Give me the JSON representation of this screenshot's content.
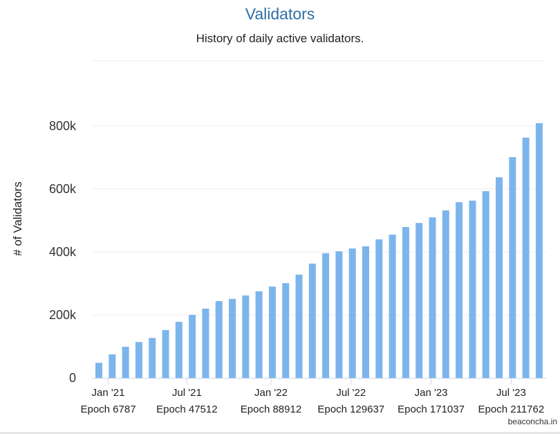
{
  "chart_data": {
    "type": "bar",
    "title": "Validators",
    "subtitle": "History of daily active validators.",
    "xlabel": "",
    "ylabel": "# of Validators",
    "ylim": [
      0,
      850000
    ],
    "yticks": [
      0,
      200000,
      400000,
      600000,
      800000
    ],
    "ytick_labels": [
      "0",
      "200k",
      "400k",
      "600k",
      "800k"
    ],
    "grid": true,
    "color": "#7cb5ec",
    "values": [
      48000,
      75000,
      99000,
      114000,
      127000,
      152000,
      178000,
      200000,
      220000,
      244000,
      251000,
      262000,
      275000,
      290000,
      301000,
      328000,
      363000,
      396000,
      402000,
      411000,
      418000,
      440000,
      455000,
      479000,
      492000,
      510000,
      532000,
      558000,
      563000,
      593000,
      637000,
      701000,
      763000,
      809000
    ],
    "xticks": [
      {
        "at": 0.7,
        "line1": "Jan '21",
        "line2": "Epoch 6787"
      },
      {
        "at": 6.6,
        "line1": "Jul '21",
        "line2": "Epoch 47512"
      },
      {
        "at": 12.9,
        "line1": "Jan '22",
        "line2": "Epoch 88912"
      },
      {
        "at": 18.9,
        "line1": "Jul '22",
        "line2": "Epoch 129637"
      },
      {
        "at": 24.9,
        "line1": "Jan '23",
        "line2": "Epoch 171037"
      },
      {
        "at": 30.9,
        "line1": "Jul '23",
        "line2": "Epoch 211762"
      }
    ],
    "credit": "beaconcha.in"
  }
}
